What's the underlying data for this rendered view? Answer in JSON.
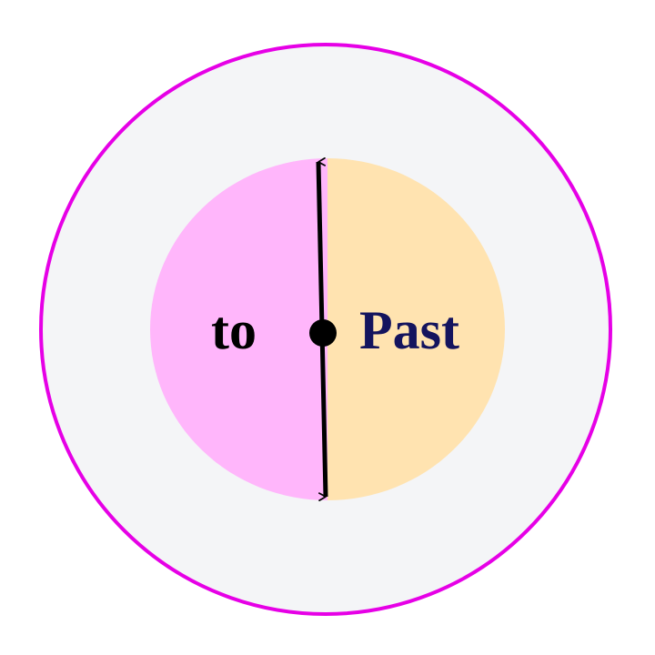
{
  "diagram": {
    "left_label": "to",
    "right_label": "Past",
    "colors": {
      "outer_ring_stroke": "#e600e6",
      "outer_fill": "#f4f5f7",
      "left_half_fill": "#ffb6fb",
      "right_half_fill": "#ffe3b0",
      "divider_line": "#000000",
      "left_label_color": "#000000",
      "right_label_color": "#14145e"
    }
  }
}
